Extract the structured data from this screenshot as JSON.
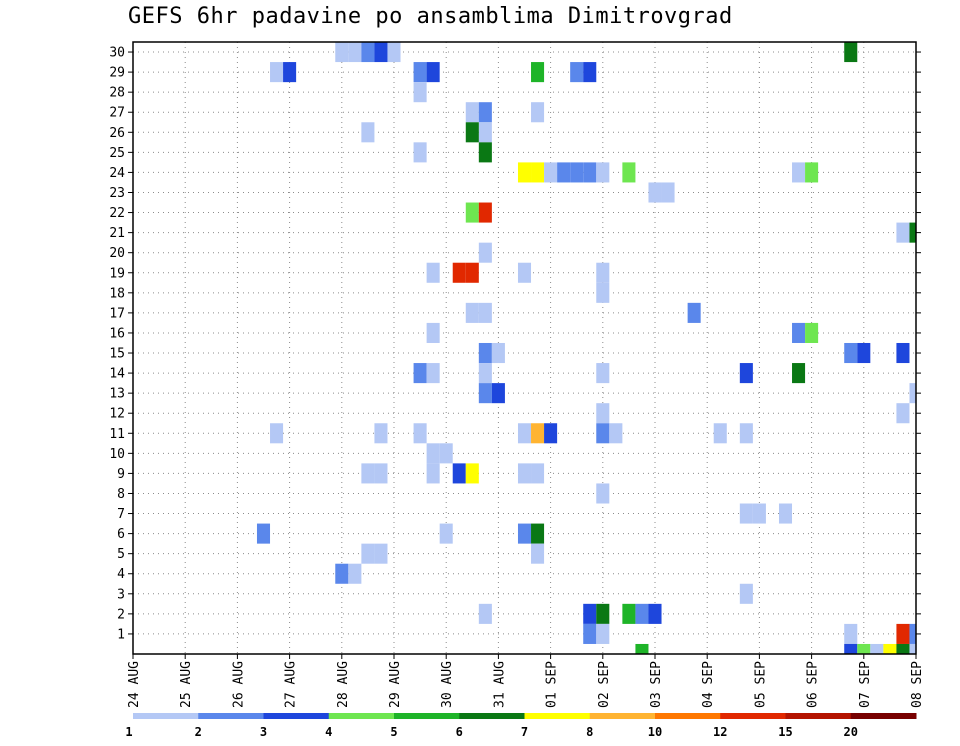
{
  "chart_data": {
    "type": "heatmap",
    "title": "GEFS 6hr padavine po ansamblima Dimitrovgrad",
    "y_ticks": [
      "1",
      "2",
      "3",
      "4",
      "5",
      "6",
      "7",
      "8",
      "9",
      "10",
      "11",
      "12",
      "13",
      "14",
      "15",
      "16",
      "17",
      "18",
      "19",
      "20",
      "21",
      "22",
      "23",
      "24",
      "25",
      "26",
      "27",
      "28",
      "29",
      "30"
    ],
    "x_ticks": [
      "24 AUG",
      "25 AUG",
      "26 AUG",
      "27 AUG",
      "28 AUG",
      "29 AUG",
      "30 AUG",
      "31 AUG",
      "01 SEP",
      "02 SEP",
      "03 SEP",
      "04 SEP",
      "05 SEP",
      "06 SEP",
      "07 SEP",
      "08 SEP"
    ],
    "x_range_steps": [
      0,
      60
    ],
    "y_range": [
      0,
      30
    ],
    "grid": true,
    "colorbar": {
      "labels": [
        "1",
        "2",
        "3",
        "4",
        "5",
        "6",
        "7",
        "8",
        "10",
        "12",
        "15",
        "20"
      ],
      "colors": [
        "#b4c8f5",
        "#5a87eb",
        "#1e46dc",
        "#6ee650",
        "#1eb428",
        "#0a7814",
        "#ffff00",
        "#ffb432",
        "#ff7800",
        "#e12800",
        "#b41400",
        "#780000"
      ]
    },
    "cells": [
      [
        16,
        30,
        1
      ],
      [
        17,
        30,
        1
      ],
      [
        18,
        30,
        2
      ],
      [
        19,
        30,
        3
      ],
      [
        20,
        30,
        1
      ],
      [
        11,
        29,
        1
      ],
      [
        12,
        29,
        3
      ],
      [
        22,
        29,
        2
      ],
      [
        23,
        29,
        3
      ],
      [
        31,
        29,
        5
      ],
      [
        34,
        29,
        2
      ],
      [
        35,
        29,
        3
      ],
      [
        22,
        28,
        1
      ],
      [
        26,
        27,
        1
      ],
      [
        27,
        27,
        2
      ],
      [
        31,
        27,
        1
      ],
      [
        18,
        26,
        1
      ],
      [
        27,
        26,
        1
      ],
      [
        26,
        26,
        6
      ],
      [
        22,
        25,
        1
      ],
      [
        27,
        25,
        6
      ],
      [
        30,
        24,
        7
      ],
      [
        31,
        24,
        7
      ],
      [
        32,
        24,
        1
      ],
      [
        33,
        24,
        2
      ],
      [
        34,
        24,
        2
      ],
      [
        35,
        24,
        2
      ],
      [
        36,
        24,
        1
      ],
      [
        38,
        24,
        4
      ],
      [
        51,
        24,
        1
      ],
      [
        52,
        24,
        4
      ],
      [
        40,
        23,
        1
      ],
      [
        41,
        23,
        1
      ],
      [
        26,
        22,
        4
      ],
      [
        27,
        22,
        10
      ],
      [
        59,
        21,
        1
      ],
      [
        60,
        21,
        6
      ],
      [
        27,
        20,
        1
      ],
      [
        30,
        19,
        1
      ],
      [
        36,
        19,
        1
      ],
      [
        23,
        19,
        1
      ],
      [
        25,
        19,
        10
      ],
      [
        26,
        19,
        10
      ],
      [
        36,
        18,
        1
      ],
      [
        26,
        17,
        1
      ],
      [
        27,
        17,
        1
      ],
      [
        43,
        17,
        2
      ],
      [
        23,
        16,
        1
      ],
      [
        51,
        16,
        2
      ],
      [
        52,
        16,
        4
      ],
      [
        27,
        15,
        2
      ],
      [
        28,
        15,
        1
      ],
      [
        55,
        15,
        2
      ],
      [
        56,
        15,
        3
      ],
      [
        59,
        15,
        3
      ],
      [
        22,
        14,
        2
      ],
      [
        23,
        14,
        1
      ],
      [
        27,
        14,
        1
      ],
      [
        36,
        14,
        1
      ],
      [
        47,
        14,
        3
      ],
      [
        51,
        14,
        6
      ],
      [
        27,
        13,
        2
      ],
      [
        28,
        13,
        3
      ],
      [
        60,
        13,
        1
      ],
      [
        36,
        12,
        1
      ],
      [
        59,
        12,
        1
      ],
      [
        11,
        11,
        1
      ],
      [
        19,
        11,
        1
      ],
      [
        22,
        11,
        1
      ],
      [
        30,
        11,
        1
      ],
      [
        31,
        11,
        8
      ],
      [
        32,
        11,
        3
      ],
      [
        36,
        11,
        2
      ],
      [
        37,
        11,
        1
      ],
      [
        45,
        11,
        1
      ],
      [
        47,
        11,
        1
      ],
      [
        23,
        10,
        1
      ],
      [
        24,
        10,
        1
      ],
      [
        18,
        9,
        1
      ],
      [
        19,
        9,
        1
      ],
      [
        23,
        9,
        1
      ],
      [
        25,
        9,
        3
      ],
      [
        26,
        9,
        7
      ],
      [
        30,
        9,
        1
      ],
      [
        31,
        9,
        1
      ],
      [
        36,
        8,
        1
      ],
      [
        47,
        7,
        1
      ],
      [
        48,
        7,
        1
      ],
      [
        50,
        7,
        1
      ],
      [
        10,
        6,
        2
      ],
      [
        24,
        6,
        1
      ],
      [
        30,
        6,
        2
      ],
      [
        31,
        6,
        6
      ],
      [
        18,
        5,
        1
      ],
      [
        19,
        5,
        1
      ],
      [
        31,
        5,
        1
      ],
      [
        16,
        4,
        2
      ],
      [
        17,
        4,
        1
      ],
      [
        47,
        3,
        1
      ],
      [
        27,
        2,
        1
      ],
      [
        35,
        2,
        3
      ],
      [
        36,
        2,
        6
      ],
      [
        38,
        2,
        5
      ],
      [
        39,
        2,
        2
      ],
      [
        40,
        2,
        3
      ],
      [
        35,
        1,
        2
      ],
      [
        36,
        1,
        1
      ],
      [
        55,
        1,
        1
      ],
      [
        59,
        1,
        10
      ],
      [
        60,
        1,
        2
      ],
      [
        55,
        0,
        3
      ],
      [
        56,
        0,
        4
      ],
      [
        57,
        0,
        1
      ],
      [
        58,
        0,
        7
      ],
      [
        59,
        0,
        6
      ],
      [
        60,
        0,
        1
      ],
      [
        55,
        30,
        6
      ],
      [
        39,
        0,
        5
      ]
    ]
  }
}
